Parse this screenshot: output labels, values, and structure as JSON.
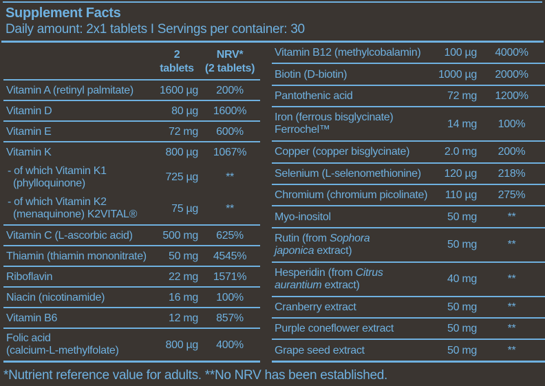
{
  "colors": {
    "background": "#3a3531",
    "accent": "#6fb1e0"
  },
  "header": {
    "title": "Supplement Facts",
    "subtitle": "Daily amount: 2x1 tablets I Servings per container: 30"
  },
  "columns": {
    "amount_line1": "2",
    "amount_line2": "tablets",
    "nrv_line1": "NRV*",
    "nrv_line2": "(2 tablets)"
  },
  "left_rows": [
    {
      "name": "Vitamin A (retinyl palmitate)",
      "amount": "1600 µg",
      "nrv": "200%"
    },
    {
      "name": "Vitamin D",
      "amount": "80 µg",
      "nrv": "1600%"
    },
    {
      "name": "Vitamin E",
      "amount": "72 mg",
      "nrv": "600%"
    },
    {
      "name": "Vitamin K",
      "amount": "800 µg",
      "nrv": "1067%",
      "no_separator": true
    },
    {
      "name": "- of which Vitamin K1\n(phylloquinone)",
      "amount": "725 µg",
      "nrv": "**",
      "sub": true,
      "no_separator": true
    },
    {
      "name": "- of which Vitamin K2\n(menaquinone) K2VITAL®",
      "amount": "75 µg",
      "nrv": "**",
      "sub": true
    },
    {
      "name": "Vitamin C (L-ascorbic acid)",
      "amount": "500 mg",
      "nrv": "625%"
    },
    {
      "name": "Thiamin (thiamin mononitrate)",
      "amount": "50 mg",
      "nrv": "4545%"
    },
    {
      "name": "Riboflavin",
      "amount": "22 mg",
      "nrv": "1571%"
    },
    {
      "name": "Niacin (nicotinamide)",
      "amount": "16 mg",
      "nrv": "100%"
    },
    {
      "name": "Vitamin B6",
      "amount": "12 mg",
      "nrv": "857%"
    },
    {
      "name": "Folic acid\n(calcium-L-methylfolate)",
      "amount": "800 µg",
      "nrv": "400%"
    }
  ],
  "right_rows": [
    {
      "name": "Vitamin B12 (methylcobalamin)",
      "amount": "100 µg",
      "nrv": "4000%"
    },
    {
      "name": "Biotin (D-biotin)",
      "amount": "1000 µg",
      "nrv": "2000%"
    },
    {
      "name": "Pantothenic acid",
      "amount": "72 mg",
      "nrv": "1200%"
    },
    {
      "name": "Iron (ferrous bisglycinate)\nFerrochel™",
      "amount": "14 mg",
      "nrv": "100%"
    },
    {
      "name": "Copper (copper bisglycinate)",
      "amount": "2.0 mg",
      "nrv": "200%"
    },
    {
      "name": "Selenium (L-selenomethionine)",
      "amount": "120 µg",
      "nrv": "218%"
    },
    {
      "name": "Chromium (chromium picolinate)",
      "amount": "110 µg",
      "nrv": "275%"
    },
    {
      "name": "Myo-inositol",
      "amount": "50 mg",
      "nrv": "**"
    },
    {
      "name": "Rutin (from *Sophora*\n*japonica* extract)",
      "amount": "50 mg",
      "nrv": "**"
    },
    {
      "name": "Hesperidin (from *Citrus*\n*aurantium* extract)",
      "amount": "40 mg",
      "nrv": "**"
    },
    {
      "name": "Cranberry extract",
      "amount": "50 mg",
      "nrv": "**"
    },
    {
      "name": "Purple coneflower extract",
      "amount": "50 mg",
      "nrv": "**"
    },
    {
      "name": "Grape seed extract",
      "amount": "50 mg",
      "nrv": "**"
    }
  ],
  "footer": {
    "note": "*Nutrient reference value for adults. **No NRV has been established."
  }
}
